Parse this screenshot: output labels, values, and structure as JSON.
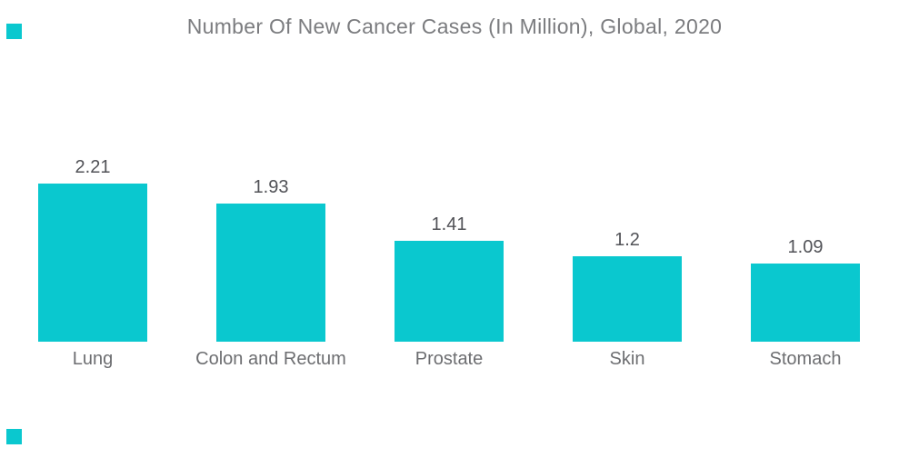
{
  "page": {
    "background": "#FFFFFF"
  },
  "decor": {
    "accent_square_color": "#0AC8CF"
  },
  "colors": {
    "bar": "#0AC8CF",
    "title_text": "#7B7C7F",
    "value_text": "#515257",
    "category_text": "#6D6E71"
  },
  "chart_data": {
    "type": "bar",
    "title": "Number Of New Cancer Cases (In Million), Global, 2020",
    "categories": [
      "Lung",
      "Colon and Rectum",
      "Prostate",
      "Skin",
      "Stomach"
    ],
    "values": [
      2.21,
      1.93,
      1.41,
      1.2,
      1.09
    ],
    "value_labels": [
      "2.21",
      "1.93",
      "1.41",
      "1.2",
      "1.09"
    ],
    "xlabel": "",
    "ylabel": "",
    "ylim": [
      0,
      2.4
    ],
    "grid": false,
    "axes_visible": false,
    "legend_position": "none",
    "bar_color": "#0AC8CF",
    "value_labels_position": "above-bars",
    "category_labels_position": "below-bars"
  }
}
